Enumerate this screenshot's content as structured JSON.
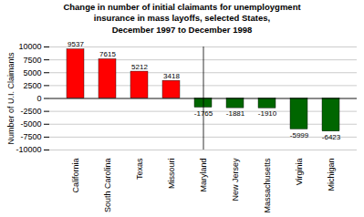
{
  "chart_data": {
    "type": "bar",
    "title": "Change in number of initial claimants for unemploygment\ninsurance in mass layoffs, selected States,\nDecember 1997 to December 1998",
    "ylabel": "Number of U.I. Claimants",
    "categories": [
      "California",
      "South Carolina",
      "Texas",
      "Missouri",
      "Maryland",
      "New Jersey",
      "Massachusetts",
      "Virginia",
      "Michigan"
    ],
    "values": [
      9537,
      7615,
      5212,
      3418,
      -1765,
      -1881,
      -1910,
      -5999,
      -6423
    ],
    "colors": [
      "#ff0000",
      "#ff0000",
      "#ff0000",
      "#ff0000",
      "#006600",
      "#006600",
      "#006600",
      "#006600",
      "#006600"
    ],
    "ylim": [
      -10000,
      10000
    ],
    "yticks": [
      -10000,
      -7500,
      -5000,
      -2500,
      0,
      2500,
      5000,
      7500,
      10000
    ],
    "grid": true,
    "data_labels": true
  }
}
